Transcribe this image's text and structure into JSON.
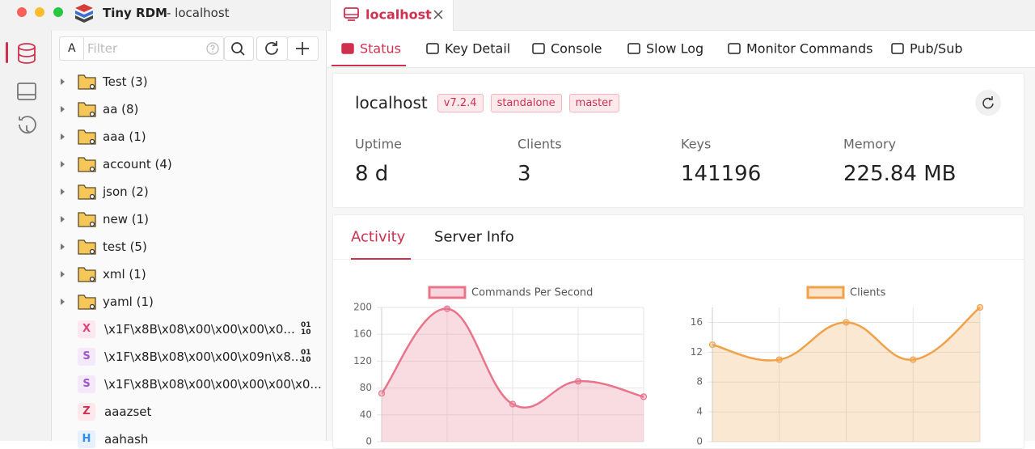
{
  "window": {
    "app_name": "Tiny RDM",
    "subtitle": "- localhost"
  },
  "tab": "localhost",
  "sidebar": {
    "case_button": "A",
    "filter_placeholder": "Filter",
    "folders": [
      "Test (3)",
      "aa (8)",
      "aaa (1)",
      "account (4)",
      "json (2)",
      "new (1)",
      "test (5)",
      "xml (1)",
      "yaml (1)"
    ],
    "keys": [
      {
        "type": "X",
        "name": "\\x1F\\x8B\\x08\\x00\\x00\\x00\\x0...",
        "badge": [
          "01",
          "10"
        ]
      },
      {
        "type": "S",
        "name": "\\x1F\\x8B\\x08\\x00\\x00\\x09n\\x8...",
        "badge": [
          "01",
          "10"
        ]
      },
      {
        "type": "S",
        "name": "\\x1F\\x8B\\x08\\x00\\x00\\x00\\x00\\x0..."
      },
      {
        "type": "Z",
        "name": "aaazset"
      },
      {
        "type": "H",
        "name": "aahash"
      }
    ]
  },
  "subtabs": [
    "Status",
    "Key Detail",
    "Console",
    "Slow Log",
    "Monitor Commands",
    "Pub/Sub"
  ],
  "status": {
    "host": "localhost",
    "tags": [
      "v7.2.4",
      "standalone",
      "master"
    ],
    "stats": [
      {
        "label": "Uptime",
        "value": "8 d"
      },
      {
        "label": "Clients",
        "value": "3"
      },
      {
        "label": "Keys",
        "value": "141196"
      },
      {
        "label": "Memory",
        "value": "225.84 MB"
      }
    ]
  },
  "activity_tabs": [
    "Activity",
    "Server Info"
  ],
  "chart_data": [
    {
      "type": "line",
      "categories": [
        null,
        null,
        null,
        null,
        null
      ],
      "series": [
        {
          "name": "Commands Per Second",
          "color": "#e8748c",
          "values": [
            72,
            198,
            56,
            90,
            67
          ]
        }
      ],
      "ylim": [
        0,
        200
      ],
      "yticks": [
        0,
        40,
        80,
        120,
        160,
        200
      ],
      "grid": true,
      "fill": true
    },
    {
      "type": "line",
      "categories": [
        null,
        null,
        null,
        null,
        null
      ],
      "series": [
        {
          "name": "Clients",
          "color": "#f0a24a",
          "values": [
            13,
            11,
            16,
            11,
            18
          ]
        }
      ],
      "ylim": [
        0,
        18
      ],
      "yticks": [
        0,
        4,
        8,
        12,
        16
      ],
      "grid": true,
      "fill": true
    }
  ]
}
